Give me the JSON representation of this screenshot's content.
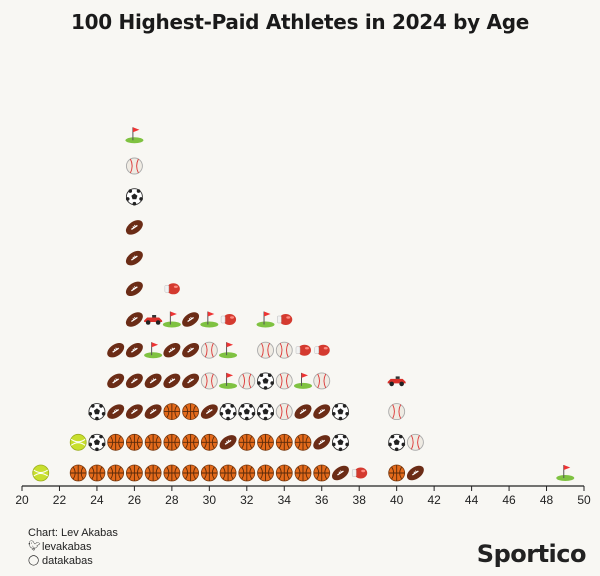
{
  "title": "100 Highest-Paid Athletes in 2024 by Age",
  "credits": {
    "chart_by": "Chart: Lev Akabas",
    "twitter": "levakabas",
    "instagram": "datakabas",
    "twitter_icon": "twitter-bird-icon",
    "instagram_icon": "instagram-icon"
  },
  "logo": "Sportico",
  "colors": {
    "football": "#6b2c16",
    "basketball": "#e36a1b",
    "soccer": "#ffffff",
    "baseball": "#efebe3",
    "golf": "#7fc241",
    "tennis": "#c8df2e",
    "boxing": "#d43a2f",
    "racing": "#d9302a",
    "axis": "#222222"
  },
  "chart_data": {
    "type": "scatter",
    "subtype": "unit-pictograph",
    "title": "100 Highest-Paid Athletes in 2024 by Age",
    "xlabel": "",
    "ylabel": "",
    "xlim": [
      20,
      50
    ],
    "xticks": [
      20,
      22,
      24,
      26,
      28,
      30,
      32,
      34,
      36,
      38,
      40,
      42,
      44,
      46,
      48,
      50
    ],
    "unit": "one icon = one athlete",
    "stacks": [
      {
        "age": 21,
        "sports": [
          "tennis"
        ]
      },
      {
        "age": 23,
        "sports": [
          "basketball",
          "tennis"
        ]
      },
      {
        "age": 24,
        "sports": [
          "basketball",
          "soccer",
          "soccer"
        ]
      },
      {
        "age": 25,
        "sports": [
          "basketball",
          "basketball",
          "football",
          "football",
          "football"
        ]
      },
      {
        "age": 26,
        "sports": [
          "basketball",
          "basketball",
          "football",
          "football",
          "football",
          "football",
          "football",
          "football",
          "football",
          "soccer",
          "baseball",
          "golf"
        ]
      },
      {
        "age": 27,
        "sports": [
          "basketball",
          "basketball",
          "football",
          "football",
          "golf",
          "racing"
        ]
      },
      {
        "age": 28,
        "sports": [
          "basketball",
          "basketball",
          "basketball",
          "football",
          "football",
          "golf",
          "boxing"
        ]
      },
      {
        "age": 29,
        "sports": [
          "basketball",
          "basketball",
          "basketball",
          "football",
          "football",
          "football"
        ]
      },
      {
        "age": 30,
        "sports": [
          "basketball",
          "basketball",
          "football",
          "baseball",
          "baseball",
          "golf"
        ]
      },
      {
        "age": 31,
        "sports": [
          "basketball",
          "football",
          "soccer",
          "golf",
          "golf",
          "boxing"
        ]
      },
      {
        "age": 32,
        "sports": [
          "basketball",
          "basketball",
          "soccer",
          "baseball"
        ]
      },
      {
        "age": 33,
        "sports": [
          "basketball",
          "basketball",
          "soccer",
          "soccer",
          "baseball",
          "golf"
        ]
      },
      {
        "age": 34,
        "sports": [
          "basketball",
          "basketball",
          "baseball",
          "baseball",
          "baseball",
          "boxing"
        ]
      },
      {
        "age": 35,
        "sports": [
          "basketball",
          "basketball",
          "football",
          "golf",
          "boxing"
        ]
      },
      {
        "age": 36,
        "sports": [
          "basketball",
          "football",
          "football",
          "baseball",
          "boxing"
        ]
      },
      {
        "age": 37,
        "sports": [
          "football",
          "soccer",
          "soccer"
        ]
      },
      {
        "age": 38,
        "sports": [
          "boxing"
        ]
      },
      {
        "age": 40,
        "sports": [
          "basketball",
          "soccer",
          "baseball",
          "racing"
        ]
      },
      {
        "age": 41,
        "sports": [
          "football",
          "baseball"
        ]
      },
      {
        "age": 49,
        "sports": [
          "golf"
        ]
      }
    ]
  }
}
